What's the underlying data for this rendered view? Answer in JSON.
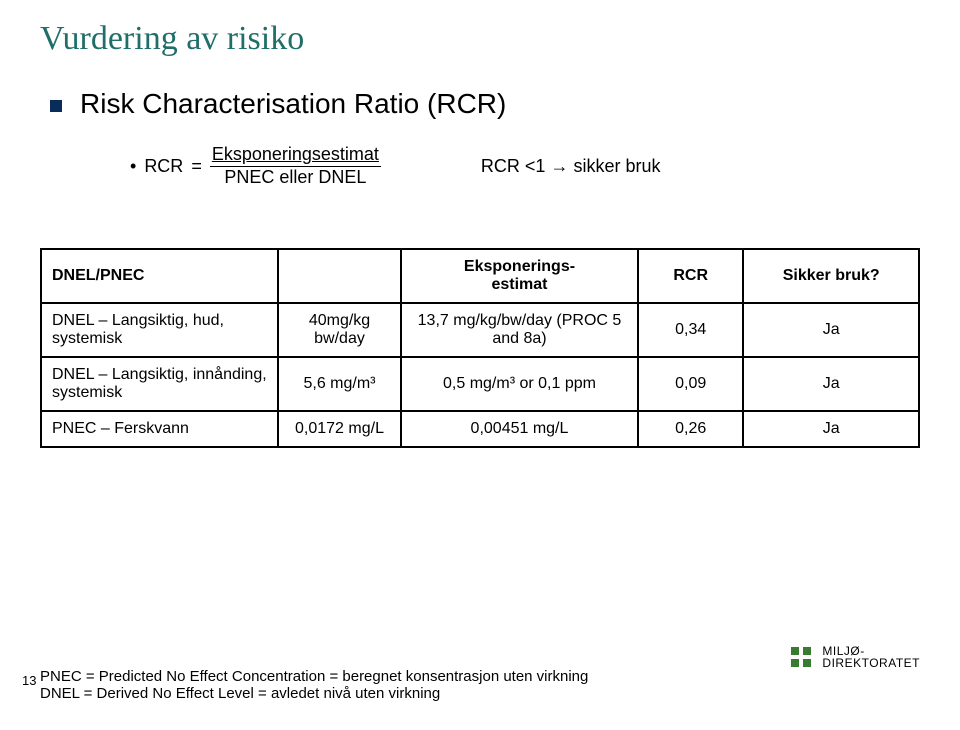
{
  "title": "Vurdering av risiko",
  "bullet1": "Risk Characterisation Ratio (RCR)",
  "formula": {
    "lhs": "RCR",
    "eq": "=",
    "numerator": "Eksponeringsestimat",
    "denominator": "PNEC eller DNEL",
    "condition_lhs": "RCR <1",
    "arrow": "→",
    "condition_rhs": "sikker bruk"
  },
  "table": {
    "headers": [
      "DNEL/PNEC",
      "",
      "Eksponerings-\nestimat",
      "RCR",
      "Sikker bruk?"
    ],
    "rows": [
      [
        "DNEL – Langsiktig, hud, systemisk",
        "40mg/kg bw/day",
        "13,7 mg/kg/bw/day (PROC 5 and 8a)",
        "0,34",
        "Ja"
      ],
      [
        "DNEL – Langsiktig, innånding, systemisk",
        "5,6 mg/m³",
        "0,5 mg/m³ or 0,1 ppm",
        "0,09",
        "Ja"
      ],
      [
        "PNEC – Ferskvann",
        "0,0172 mg/L",
        "0,00451 mg/L",
        "0,26",
        "Ja"
      ]
    ],
    "col_widths": [
      "27%",
      "14%",
      "27%",
      "12%",
      "20%"
    ]
  },
  "footnotes": [
    "PNEC = Predicted No Effect Concentration = beregnet konsentrasjon uten virkning",
    "DNEL = Derived No Effect Level = avledet nivå uten virkning"
  ],
  "page_number": "13",
  "logo": {
    "line1": "MILJØ-",
    "line2": "DIREKTORATET",
    "color": "#3a7b32"
  }
}
